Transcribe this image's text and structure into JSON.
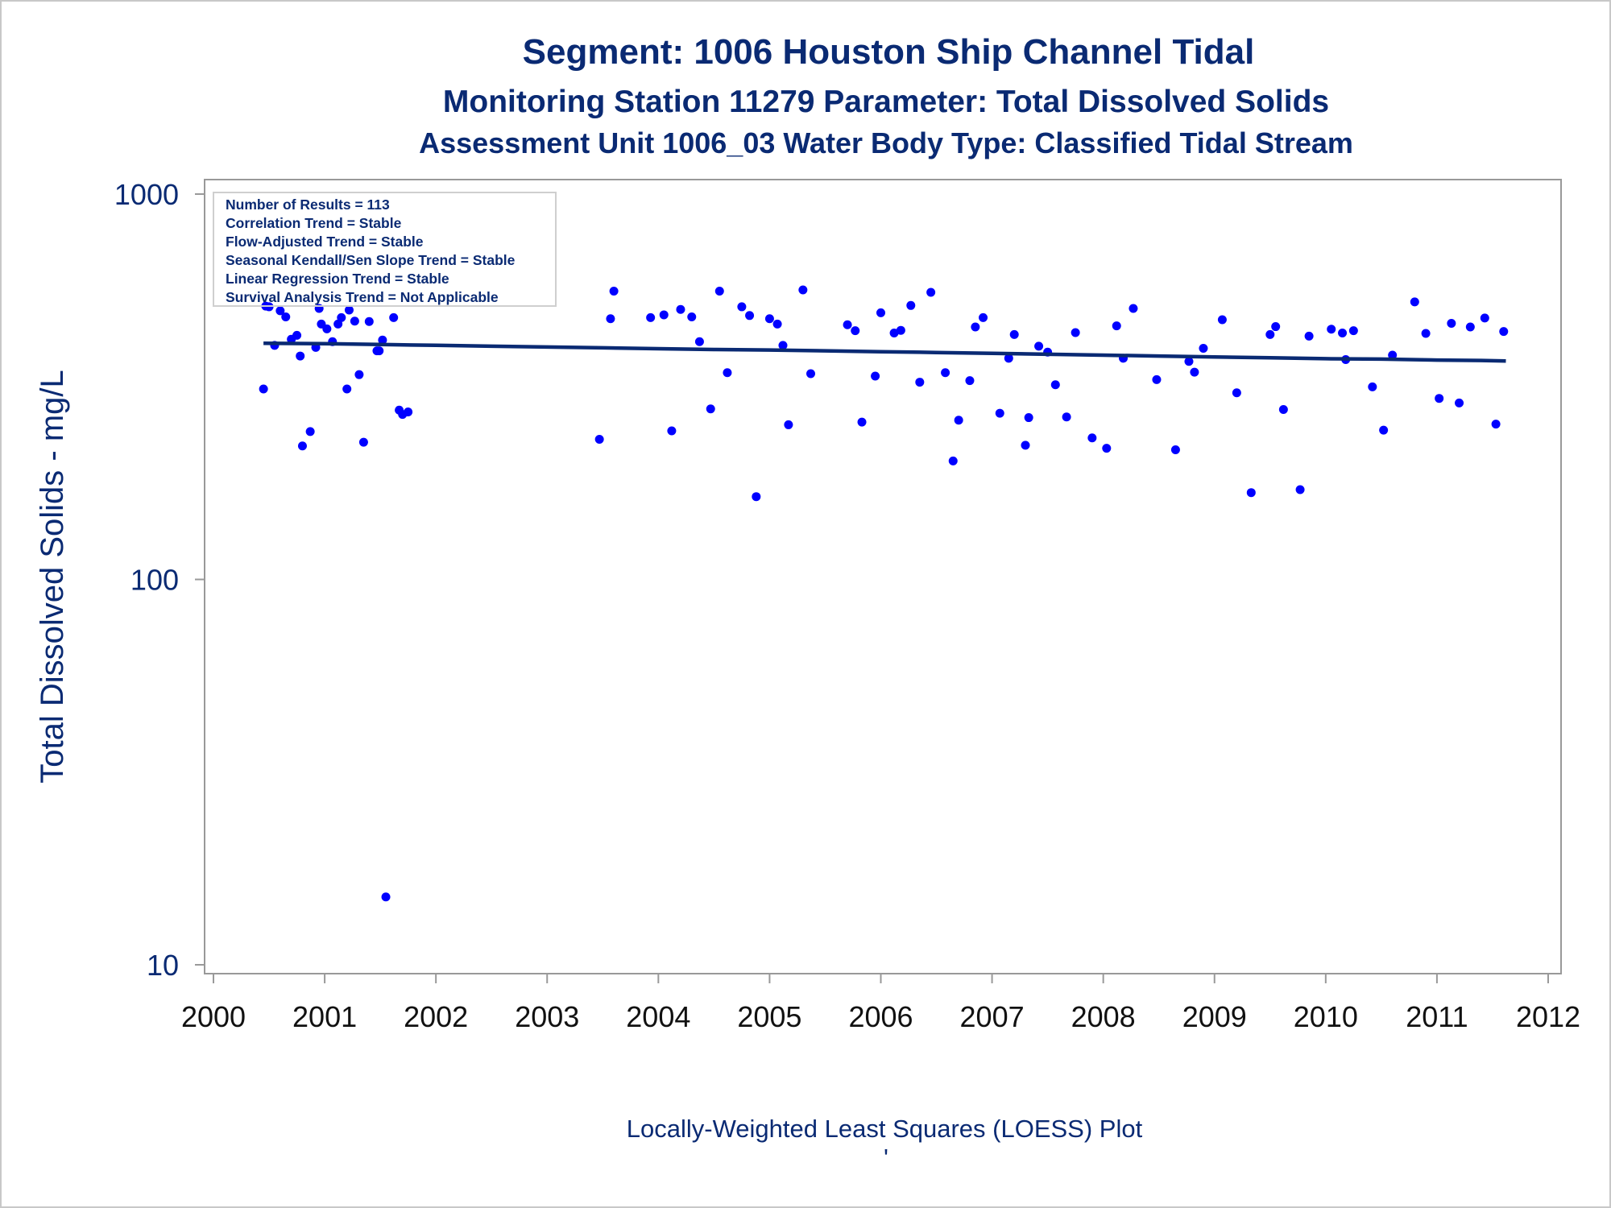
{
  "chart_data": {
    "type": "scatter",
    "title": "Segment: 1006  Houston Ship Channel Tidal",
    "subtitle": "Monitoring Station 11279 Parameter: Total Dissolved Solids",
    "subtitle2": "Assessment Unit 1006_03   Water Body Type: Classified Tidal Stream",
    "xlabel": "",
    "ylabel": "Total Dissolved Solids - mg/L",
    "footnote": "Locally-Weighted Least Squares (LOESS) Plot",
    "footnote_mark": "'",
    "x_ticks": [
      "2000",
      "2001",
      "2002",
      "2003",
      "2004",
      "2005",
      "2006",
      "2007",
      "2008",
      "2009",
      "2010",
      "2011",
      "2012"
    ],
    "y_ticks": [
      "10",
      "100",
      "1000"
    ],
    "xlim": [
      2000,
      2012
    ],
    "ylim": [
      10,
      1000
    ],
    "y_scale": "log",
    "grid": false,
    "legend_placement": "top-left",
    "stats": [
      "Number of Results = 113",
      "Correlation Trend = Stable",
      "Flow-Adjusted Trend = Stable",
      "Seasonal Kendall/Sen Slope Trend = Stable",
      "Linear Regression Trend = Stable",
      "Survival Analysis Trend = Not Applicable"
    ],
    "points": [
      [
        2000.45,
        312
      ],
      [
        2000.47,
        512
      ],
      [
        2000.5,
        510
      ],
      [
        2000.55,
        405
      ],
      [
        2000.6,
        498
      ],
      [
        2000.65,
        480
      ],
      [
        2000.7,
        420
      ],
      [
        2000.75,
        430
      ],
      [
        2000.78,
        380
      ],
      [
        2000.8,
        222
      ],
      [
        2000.87,
        242
      ],
      [
        2000.92,
        400
      ],
      [
        2000.95,
        505
      ],
      [
        2000.97,
        460
      ],
      [
        2001.02,
        447
      ],
      [
        2001.07,
        414
      ],
      [
        2001.12,
        460
      ],
      [
        2001.15,
        478
      ],
      [
        2001.2,
        312
      ],
      [
        2001.22,
        500
      ],
      [
        2001.27,
        468
      ],
      [
        2001.31,
        340
      ],
      [
        2001.35,
        227
      ],
      [
        2001.4,
        467
      ],
      [
        2001.47,
        392
      ],
      [
        2001.49,
        392
      ],
      [
        2001.52,
        418
      ],
      [
        2001.55,
        15
      ],
      [
        2001.62,
        478
      ],
      [
        2001.67,
        275
      ],
      [
        2001.7,
        268
      ],
      [
        2001.75,
        272
      ],
      [
        2003.47,
        231
      ],
      [
        2003.57,
        475
      ],
      [
        2003.6,
        560
      ],
      [
        2003.93,
        478
      ],
      [
        2004.05,
        486
      ],
      [
        2004.12,
        243
      ],
      [
        2004.2,
        502
      ],
      [
        2004.3,
        480
      ],
      [
        2004.37,
        414
      ],
      [
        2004.47,
        277
      ],
      [
        2004.55,
        560
      ],
      [
        2004.62,
        344
      ],
      [
        2004.75,
        510
      ],
      [
        2004.82,
        484
      ],
      [
        2004.88,
        164
      ],
      [
        2005.0,
        475
      ],
      [
        2005.07,
        460
      ],
      [
        2005.12,
        405
      ],
      [
        2005.17,
        252
      ],
      [
        2005.3,
        564
      ],
      [
        2005.37,
        342
      ],
      [
        2005.7,
        458
      ],
      [
        2005.77,
        442
      ],
      [
        2005.83,
        256
      ],
      [
        2005.95,
        337
      ],
      [
        2006.0,
        492
      ],
      [
        2006.12,
        436
      ],
      [
        2006.18,
        443
      ],
      [
        2006.27,
        514
      ],
      [
        2006.35,
        325
      ],
      [
        2006.45,
        556
      ],
      [
        2006.58,
        344
      ],
      [
        2006.65,
        203
      ],
      [
        2006.7,
        259
      ],
      [
        2006.8,
        328
      ],
      [
        2006.85,
        452
      ],
      [
        2006.92,
        478
      ],
      [
        2007.07,
        270
      ],
      [
        2007.15,
        375
      ],
      [
        2007.2,
        432
      ],
      [
        2007.3,
        223
      ],
      [
        2007.33,
        263
      ],
      [
        2007.42,
        403
      ],
      [
        2007.5,
        389
      ],
      [
        2007.57,
        320
      ],
      [
        2007.67,
        264
      ],
      [
        2007.75,
        437
      ],
      [
        2007.9,
        233
      ],
      [
        2008.03,
        219
      ],
      [
        2008.12,
        455
      ],
      [
        2008.18,
        375
      ],
      [
        2008.27,
        505
      ],
      [
        2008.48,
        330
      ],
      [
        2008.65,
        217
      ],
      [
        2008.77,
        368
      ],
      [
        2008.82,
        345
      ],
      [
        2008.9,
        398
      ],
      [
        2009.07,
        472
      ],
      [
        2009.2,
        305
      ],
      [
        2009.33,
        168
      ],
      [
        2009.5,
        432
      ],
      [
        2009.55,
        453
      ],
      [
        2009.62,
        276
      ],
      [
        2009.77,
        171
      ],
      [
        2009.85,
        428
      ],
      [
        2010.05,
        446
      ],
      [
        2010.15,
        436
      ],
      [
        2010.18,
        372
      ],
      [
        2010.25,
        442
      ],
      [
        2010.42,
        316
      ],
      [
        2010.52,
        244
      ],
      [
        2010.6,
        382
      ],
      [
        2010.8,
        525
      ],
      [
        2010.9,
        435
      ],
      [
        2011.02,
        295
      ],
      [
        2011.13,
        462
      ],
      [
        2011.2,
        287
      ],
      [
        2011.3,
        452
      ],
      [
        2011.43,
        477
      ],
      [
        2011.53,
        253
      ],
      [
        2011.6,
        440
      ]
    ],
    "loess": {
      "x": [
        2000.45,
        2001.0,
        2001.5,
        2002.0,
        2002.5,
        2003.0,
        2003.5,
        2004.0,
        2004.5,
        2005.0,
        2005.5,
        2006.0,
        2006.5,
        2007.0,
        2007.5,
        2008.0,
        2008.5,
        2009.0,
        2009.5,
        2010.0,
        2010.5,
        2011.0,
        2011.4,
        2011.62
      ],
      "y": [
        410,
        409,
        407,
        405,
        403,
        401,
        399,
        397,
        395,
        394,
        392,
        390,
        388,
        386,
        384,
        382,
        380,
        378,
        376,
        374,
        373,
        371,
        370,
        369
      ]
    },
    "colors": {
      "points": "#0000ff",
      "line": "#0a2a73",
      "text": "#0a2a73",
      "axis": "#999999"
    }
  }
}
